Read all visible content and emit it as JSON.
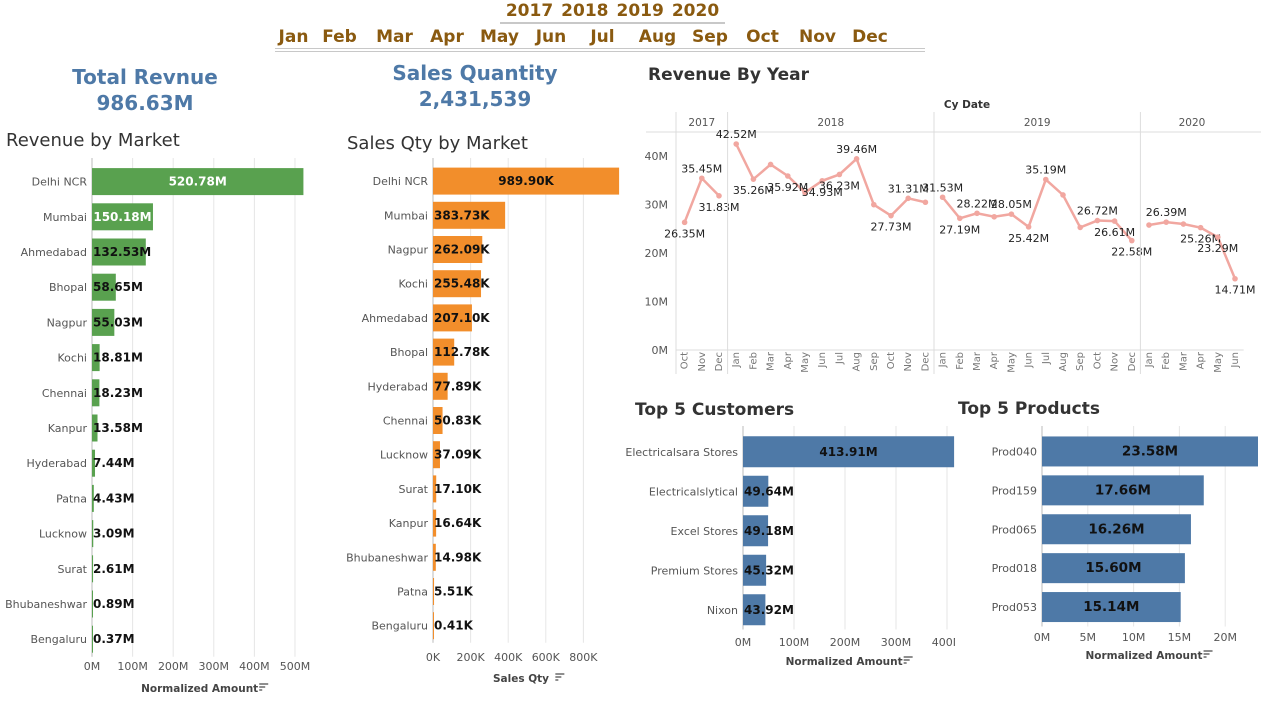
{
  "filters": {
    "years": [
      "2017",
      "2018",
      "2019",
      "2020"
    ],
    "months": [
      "Jan",
      "Feb",
      "Mar",
      "Apr",
      "May",
      "Jun",
      "Jul",
      "Aug",
      "Sep",
      "Oct",
      "Nov",
      "Dec"
    ]
  },
  "kpi_revenue": {
    "label": "Total Revnue",
    "value": "986.63M"
  },
  "kpi_qty": {
    "label": "Sales Quantity",
    "value": "2,431,539"
  },
  "sort_icon": "sort-icon",
  "chart_data": [
    {
      "id": "revenue_by_market",
      "type": "bar",
      "orientation": "horizontal",
      "title": "Revenue by Market",
      "xlabel": "Normalized Amount",
      "color": "#59a14f",
      "categories": [
        "Delhi NCR",
        "Mumbai",
        "Ahmedabad",
        "Bhopal",
        "Nagpur",
        "Kochi",
        "Chennai",
        "Kanpur",
        "Hyderabad",
        "Patna",
        "Lucknow",
        "Surat",
        "Bhubaneshwar",
        "Bengaluru"
      ],
      "values": [
        520.78,
        150.18,
        132.53,
        58.65,
        55.03,
        18.81,
        18.23,
        13.58,
        7.44,
        4.43,
        3.09,
        2.61,
        0.89,
        0.37
      ],
      "labels": [
        "520.78M",
        "150.18M",
        "132.53M",
        "58.65M",
        "55.03M",
        "18.81M",
        "18.23M",
        "13.58M",
        "7.44M",
        "4.43M",
        "3.09M",
        "2.61M",
        "0.89M",
        "0.37M"
      ],
      "xlim": [
        0,
        560
      ],
      "ticks": [
        0,
        100,
        200,
        300,
        400,
        500
      ],
      "tick_labels": [
        "0M",
        "100M",
        "200M",
        "300M",
        "400M",
        "500M"
      ]
    },
    {
      "id": "qty_by_market",
      "type": "bar",
      "orientation": "horizontal",
      "title": "Sales Qty by Market",
      "xlabel": "Sales Qty",
      "color": "#f28e2b",
      "categories": [
        "Delhi NCR",
        "Mumbai",
        "Nagpur",
        "Kochi",
        "Ahmedabad",
        "Bhopal",
        "Hyderabad",
        "Chennai",
        "Lucknow",
        "Surat",
        "Kanpur",
        "Bhubaneshwar",
        "Patna",
        "Bengaluru"
      ],
      "values": [
        989.9,
        383.73,
        262.09,
        255.48,
        207.1,
        112.78,
        77.89,
        50.83,
        37.09,
        17.1,
        16.64,
        14.98,
        5.51,
        0.41
      ],
      "labels": [
        "989.90K",
        "383.73K",
        "262.09K",
        "255.48K",
        "207.10K",
        "112.78K",
        "77.89K",
        "50.83K",
        "37.09K",
        "17.10K",
        "16.64K",
        "14.98K",
        "5.51K",
        "0.41K"
      ],
      "xlim": [
        0,
        1000
      ],
      "ticks": [
        0,
        200,
        400,
        600,
        800
      ],
      "tick_labels": [
        "0K",
        "200K",
        "400K",
        "600K",
        "800K"
      ]
    },
    {
      "id": "revenue_by_year",
      "type": "line",
      "title": "Revenue By Year",
      "header": "Cy Date",
      "color": "#f1a7a0",
      "ylim": [
        0,
        45
      ],
      "yticks": [
        0,
        10,
        20,
        30,
        40
      ],
      "ytick_labels": [
        "0M",
        "10M",
        "20M",
        "30M",
        "40M"
      ],
      "panels": [
        {
          "year": "2017",
          "months": [
            "Oct",
            "Nov",
            "Dec"
          ],
          "values": [
            26.35,
            35.45,
            31.83
          ],
          "labels": [
            "26.35M",
            "35.45M",
            "31.83M"
          ]
        },
        {
          "year": "2018",
          "months": [
            "Jan",
            "Feb",
            "Mar",
            "Apr",
            "May",
            "Jun",
            "Jul",
            "Aug",
            "Sep",
            "Oct",
            "Nov",
            "Dec"
          ],
          "values": [
            42.52,
            35.26,
            38.3,
            35.92,
            32.5,
            34.93,
            36.23,
            39.46,
            30.0,
            27.73,
            31.31,
            30.5
          ],
          "labels": [
            "42.52M",
            "35.26M",
            "",
            "35.92M",
            "",
            "34.93M",
            "36.23M",
            "39.46M",
            "",
            "27.73M",
            "31.31M",
            ""
          ]
        },
        {
          "year": "2019",
          "months": [
            "Jan",
            "Feb",
            "Mar",
            "Apr",
            "May",
            "Jun",
            "Jul",
            "Aug",
            "Sep",
            "Oct",
            "Nov",
            "Dec"
          ],
          "values": [
            31.53,
            27.19,
            28.22,
            27.5,
            28.05,
            25.42,
            35.19,
            32.0,
            25.3,
            26.72,
            26.61,
            22.58
          ],
          "labels": [
            "31.53M",
            "27.19M",
            "28.22M",
            "",
            "28.05M",
            "25.42M",
            "35.19M",
            "",
            "",
            "26.72M",
            "26.61M",
            "22.58M"
          ]
        },
        {
          "year": "2020",
          "months": [
            "Jan",
            "Feb",
            "Mar",
            "Apr",
            "May",
            "Jun"
          ],
          "values": [
            25.8,
            26.39,
            26.0,
            25.26,
            23.29,
            14.71
          ],
          "labels": [
            "",
            "26.39M",
            "",
            "25.26M",
            "23.29M",
            "14.71M"
          ]
        }
      ]
    },
    {
      "id": "top5_customers",
      "type": "bar",
      "orientation": "horizontal",
      "title": "Top 5 Customers",
      "xlabel": "Normalized Amount",
      "color": "#4e79a7",
      "categories": [
        "Electricalsara Stores",
        "Electricalslytical",
        "Excel Stores",
        "Premium Stores",
        "Nixon"
      ],
      "values": [
        413.91,
        49.64,
        49.18,
        45.32,
        43.92
      ],
      "labels": [
        "413.91M",
        "49.64M",
        "49.18M",
        "45.32M",
        "43.92M"
      ],
      "xlim": [
        0,
        420
      ],
      "ticks": [
        0,
        100,
        200,
        300,
        400
      ],
      "tick_labels": [
        "0M",
        "100M",
        "200M",
        "300M",
        "400M"
      ]
    },
    {
      "id": "top5_products",
      "type": "bar",
      "orientation": "horizontal",
      "title": "Top 5 Products",
      "xlabel": "Normalized Amount",
      "color": "#4e79a7",
      "categories": [
        "Prod040",
        "Prod159",
        "Prod065",
        "Prod018",
        "Prod053"
      ],
      "values": [
        23.58,
        17.66,
        16.26,
        15.6,
        15.14
      ],
      "labels": [
        "23.58M",
        "17.66M",
        "16.26M",
        "15.60M",
        "15.14M"
      ],
      "xlim": [
        0,
        23.58
      ],
      "ticks": [
        0,
        5,
        10,
        15,
        20
      ],
      "tick_labels": [
        "0M",
        "5M",
        "10M",
        "15M",
        "20M"
      ]
    }
  ]
}
